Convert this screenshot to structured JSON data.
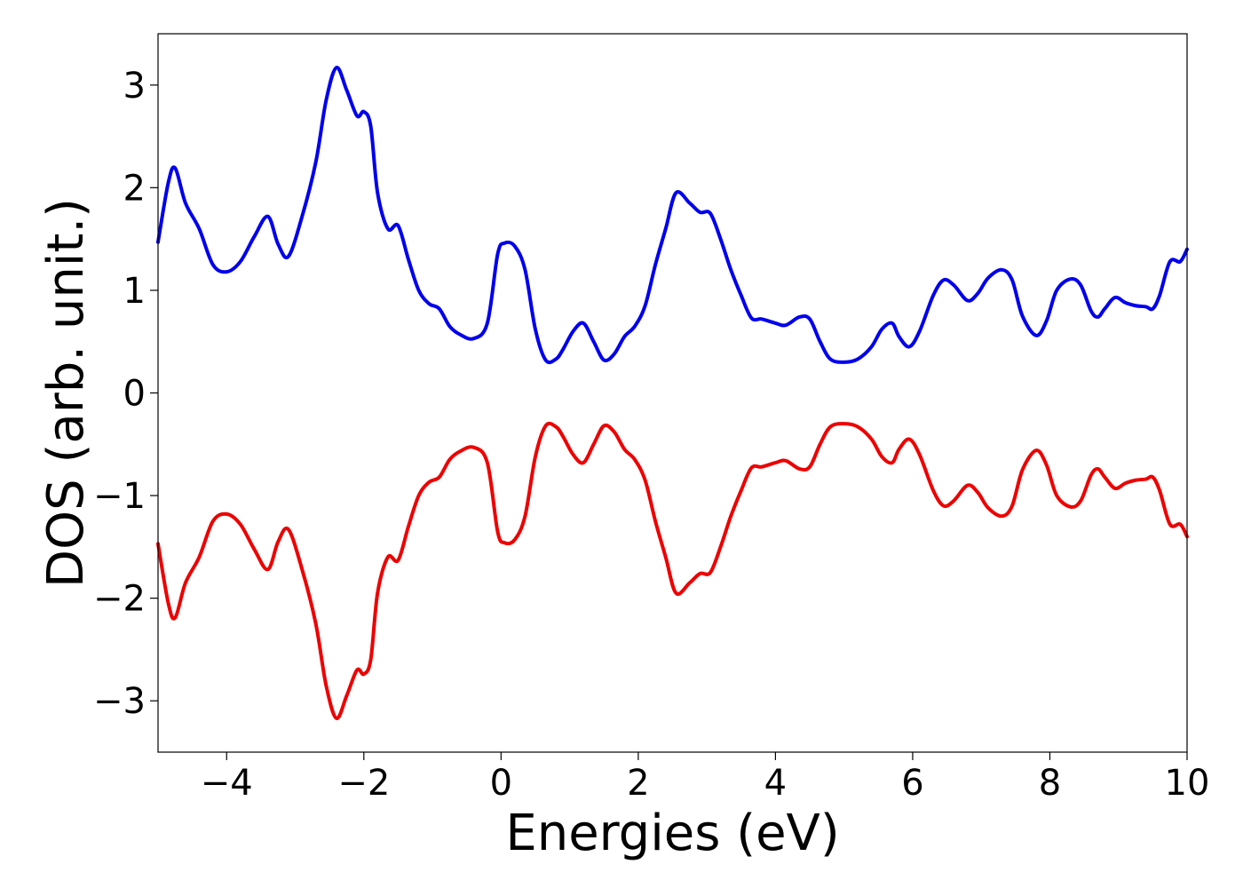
{
  "chart_data": {
    "type": "line",
    "title": "",
    "xlabel": "Energies (eV)",
    "ylabel": "DOS (arb. unit.)",
    "xlim": [
      -5,
      10
    ],
    "ylim": [
      -3.5,
      3.5
    ],
    "xticks": [
      -4,
      -2,
      0,
      2,
      4,
      6,
      8,
      10
    ],
    "xtick_labels": [
      "−4",
      "−2",
      "0",
      "2",
      "4",
      "6",
      "8",
      "10"
    ],
    "yticks": [
      -3,
      -2,
      -1,
      0,
      1,
      2,
      3
    ],
    "ytick_labels": [
      "−3",
      "−2",
      "−1",
      "0",
      "1",
      "2",
      "3"
    ],
    "grid": false,
    "legend": "none",
    "series": [
      {
        "color": "#0000ee",
        "x": [
          -5.0,
          -4.85,
          -4.75,
          -4.6,
          -4.4,
          -4.2,
          -4.0,
          -3.8,
          -3.6,
          -3.4,
          -3.25,
          -3.1,
          -2.9,
          -2.7,
          -2.55,
          -2.4,
          -2.25,
          -2.1,
          -2.0,
          -1.9,
          -1.8,
          -1.65,
          -1.5,
          -1.35,
          -1.2,
          -1.05,
          -0.9,
          -0.75,
          -0.6,
          -0.4,
          -0.2,
          -0.05,
          0.05,
          0.2,
          0.35,
          0.5,
          0.65,
          0.8,
          0.9,
          1.05,
          1.2,
          1.35,
          1.5,
          1.65,
          1.8,
          1.95,
          2.1,
          2.25,
          2.4,
          2.55,
          2.75,
          2.9,
          3.05,
          3.2,
          3.35,
          3.5,
          3.65,
          3.8,
          4.0,
          4.15,
          4.35,
          4.5,
          4.65,
          4.8,
          5.0,
          5.2,
          5.4,
          5.55,
          5.7,
          5.8,
          5.95,
          6.1,
          6.3,
          6.45,
          6.6,
          6.8,
          6.95,
          7.1,
          7.3,
          7.45,
          7.6,
          7.8,
          7.95,
          8.1,
          8.3,
          8.45,
          8.6,
          8.7,
          8.8,
          8.95,
          9.1,
          9.25,
          9.4,
          9.5,
          9.6,
          9.75,
          9.9,
          10.0
        ],
        "values": [
          1.47,
          2.05,
          2.19,
          1.85,
          1.6,
          1.25,
          1.18,
          1.28,
          1.52,
          1.72,
          1.45,
          1.33,
          1.72,
          2.25,
          2.85,
          3.17,
          2.95,
          2.7,
          2.74,
          2.6,
          1.95,
          1.6,
          1.63,
          1.3,
          1.0,
          0.87,
          0.82,
          0.65,
          0.57,
          0.53,
          0.68,
          1.35,
          1.46,
          1.43,
          1.2,
          0.62,
          0.32,
          0.33,
          0.42,
          0.6,
          0.68,
          0.5,
          0.32,
          0.38,
          0.55,
          0.65,
          0.85,
          1.25,
          1.6,
          1.95,
          1.85,
          1.76,
          1.75,
          1.5,
          1.2,
          0.95,
          0.73,
          0.72,
          0.68,
          0.66,
          0.74,
          0.72,
          0.5,
          0.33,
          0.3,
          0.33,
          0.45,
          0.62,
          0.68,
          0.55,
          0.45,
          0.6,
          0.95,
          1.1,
          1.05,
          0.9,
          0.97,
          1.12,
          1.2,
          1.1,
          0.75,
          0.56,
          0.7,
          1.0,
          1.11,
          1.05,
          0.8,
          0.74,
          0.82,
          0.93,
          0.88,
          0.85,
          0.84,
          0.82,
          0.95,
          1.28,
          1.28,
          1.4
        ]
      },
      {
        "color": "#ee0000",
        "x": [
          -5.0,
          -4.85,
          -4.75,
          -4.6,
          -4.4,
          -4.2,
          -4.0,
          -3.8,
          -3.6,
          -3.4,
          -3.25,
          -3.1,
          -2.9,
          -2.7,
          -2.55,
          -2.4,
          -2.25,
          -2.1,
          -2.0,
          -1.9,
          -1.8,
          -1.65,
          -1.5,
          -1.35,
          -1.2,
          -1.05,
          -0.9,
          -0.75,
          -0.6,
          -0.4,
          -0.2,
          -0.05,
          0.05,
          0.2,
          0.35,
          0.5,
          0.65,
          0.8,
          0.9,
          1.05,
          1.2,
          1.35,
          1.5,
          1.65,
          1.8,
          1.95,
          2.1,
          2.25,
          2.4,
          2.55,
          2.75,
          2.9,
          3.05,
          3.2,
          3.35,
          3.5,
          3.65,
          3.8,
          4.0,
          4.15,
          4.35,
          4.5,
          4.65,
          4.8,
          5.0,
          5.2,
          5.4,
          5.55,
          5.7,
          5.8,
          5.95,
          6.1,
          6.3,
          6.45,
          6.6,
          6.8,
          6.95,
          7.1,
          7.3,
          7.45,
          7.6,
          7.8,
          7.95,
          8.1,
          8.3,
          8.45,
          8.6,
          8.7,
          8.8,
          8.95,
          9.1,
          9.25,
          9.4,
          9.5,
          9.6,
          9.75,
          9.9,
          10.0
        ],
        "values": [
          -1.47,
          -2.05,
          -2.19,
          -1.85,
          -1.6,
          -1.25,
          -1.18,
          -1.28,
          -1.52,
          -1.72,
          -1.45,
          -1.33,
          -1.72,
          -2.25,
          -2.85,
          -3.17,
          -2.95,
          -2.7,
          -2.74,
          -2.6,
          -1.95,
          -1.6,
          -1.63,
          -1.3,
          -1.0,
          -0.87,
          -0.82,
          -0.65,
          -0.57,
          -0.53,
          -0.68,
          -1.35,
          -1.46,
          -1.43,
          -1.2,
          -0.62,
          -0.32,
          -0.33,
          -0.42,
          -0.6,
          -0.68,
          -0.5,
          -0.32,
          -0.38,
          -0.55,
          -0.65,
          -0.85,
          -1.25,
          -1.6,
          -1.95,
          -1.85,
          -1.76,
          -1.75,
          -1.5,
          -1.2,
          -0.95,
          -0.73,
          -0.72,
          -0.68,
          -0.66,
          -0.74,
          -0.72,
          -0.5,
          -0.33,
          -0.3,
          -0.33,
          -0.45,
          -0.62,
          -0.68,
          -0.55,
          -0.45,
          -0.6,
          -0.95,
          -1.1,
          -1.05,
          -0.9,
          -0.97,
          -1.12,
          -1.2,
          -1.1,
          -0.75,
          -0.56,
          -0.7,
          -1.0,
          -1.11,
          -1.05,
          -0.8,
          -0.74,
          -0.82,
          -0.93,
          -0.88,
          -0.85,
          -0.84,
          -0.82,
          -0.95,
          -1.28,
          -1.28,
          -1.4
        ]
      }
    ]
  }
}
